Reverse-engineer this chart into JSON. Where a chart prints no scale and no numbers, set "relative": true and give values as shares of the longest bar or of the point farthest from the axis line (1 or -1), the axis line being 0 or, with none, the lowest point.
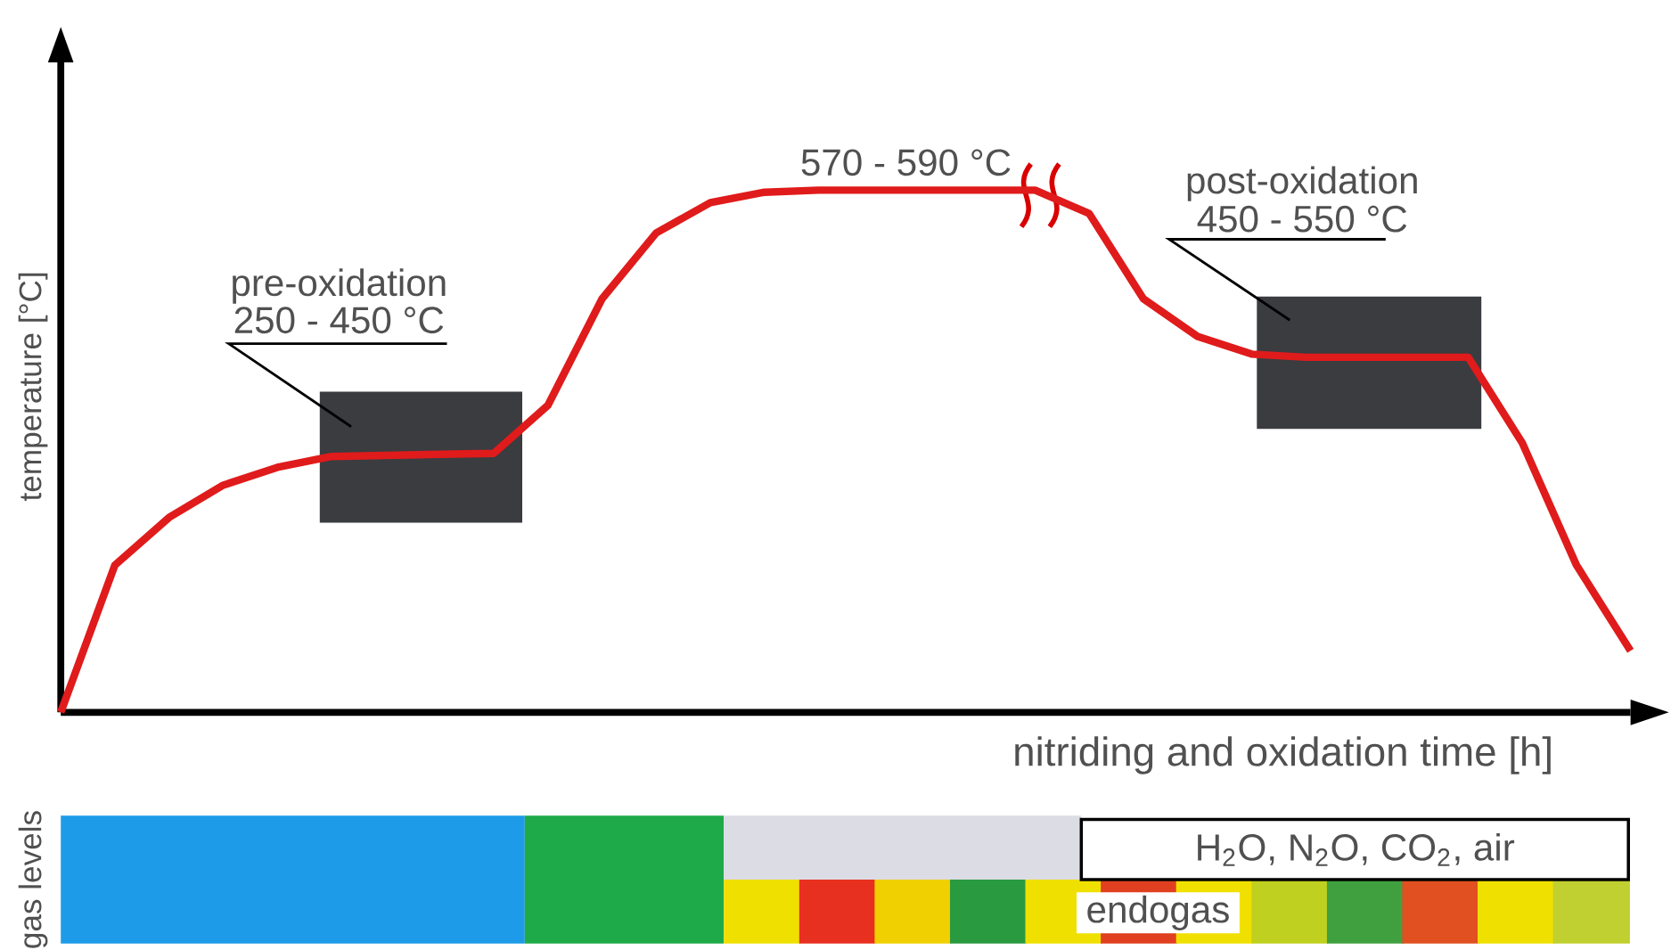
{
  "chart_data": [
    {
      "type": "line",
      "relative": true,
      "ylabel": "temperature [°C]",
      "xlabel": "nitriding and oxidation time [h]",
      "categories": [
        null,
        null,
        null,
        null,
        null,
        null,
        null,
        null,
        null,
        null,
        null,
        null,
        null,
        null,
        null,
        null,
        null,
        null,
        null,
        null,
        null,
        null,
        null,
        null,
        null,
        null,
        null,
        null,
        null,
        null
      ],
      "series": [
        {
          "color": "#e01b1b",
          "values": [
            0,
            0.282,
            0.373,
            0.435,
            0.469,
            0.49,
            0.492,
            0.494,
            0.496,
            0.588,
            0.792,
            0.918,
            0.976,
            0.996,
            1,
            1,
            1,
            1,
            1,
            0.955,
            0.792,
            0.72,
            0.686,
            0.68,
            0.68,
            0.68,
            0.68,
            0.516,
            0.282,
            0.118
          ]
        }
      ],
      "annotations": [
        "pre-oxidation",
        "250 - 450 °C",
        "570 - 590 °C",
        "post-oxidation",
        "450 - 550 °C"
      ]
    },
    {
      "type": "other",
      "ylabel": "gas levels",
      "annotations": [
        "H$_{2}$O, N$_{2}$O, CO$_{2}$, air",
        "endogas"
      ]
    }
  ]
}
